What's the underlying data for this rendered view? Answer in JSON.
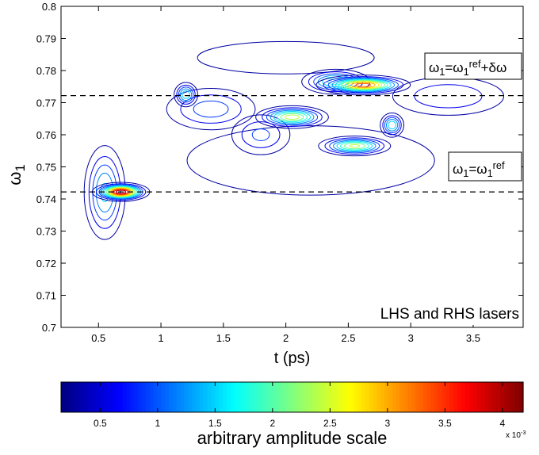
{
  "chart_data": {
    "type": "contour",
    "xlabel": "t (ps)",
    "ylabel": [
      {
        "text": "ω",
        "kind": "base"
      },
      {
        "text": "1",
        "kind": "sub"
      }
    ],
    "xlim": [
      0.2,
      3.9
    ],
    "xticks": [
      0.5,
      1,
      1.5,
      2,
      2.5,
      3,
      3.5
    ],
    "ylim": [
      0.7,
      0.8
    ],
    "yticks": [
      0.7,
      0.71,
      0.72,
      0.73,
      0.74,
      0.75,
      0.76,
      0.77,
      0.78,
      0.79,
      0.8
    ],
    "colormap": "jet",
    "clim": [
      0.16,
      4.18
    ],
    "cticks": [
      0.5,
      1,
      1.5,
      2,
      2.5,
      3,
      3.5,
      4
    ],
    "colorbar_label": "arbitrary amplitude scale",
    "colorbar_exponent": [
      {
        "text": "x 10",
        "kind": "base"
      },
      {
        "text": "-3",
        "kind": "sup"
      }
    ],
    "contour_step": 0.3,
    "hlines": [
      0.7722,
      0.7422
    ],
    "annotations": [
      [
        {
          "text": "ω",
          "kind": "base"
        },
        {
          "text": "1",
          "kind": "sub"
        },
        {
          "text": "=ω",
          "kind": "base"
        },
        {
          "text": "1",
          "kind": "sub"
        },
        {
          "text": "ref",
          "kind": "sup"
        },
        {
          "text": "+δω",
          "kind": "base"
        }
      ],
      [
        {
          "text": "ω",
          "kind": "base"
        },
        {
          "text": "1",
          "kind": "sub"
        },
        {
          "text": "=ω",
          "kind": "base"
        },
        {
          "text": "1",
          "kind": "sub"
        },
        {
          "text": "ref",
          "kind": "sup"
        }
      ]
    ],
    "legend_text": "LHS and RHS lasers",
    "peaks": [
      {
        "t": 2.2,
        "omega": 0.752,
        "amplitude": 0.45,
        "t_width": 1.1,
        "omega_width": 0.012
      },
      {
        "t": 2.0,
        "omega": 0.784,
        "amplitude": 0.5,
        "t_width": 0.7,
        "omega_width": 0.005
      },
      {
        "t": 0.55,
        "omega": 0.742,
        "amplitude": 1.6,
        "t_width": 0.09,
        "omega_width": 0.008
      },
      {
        "t": 0.68,
        "omega": 0.7422,
        "amplitude": 4.2,
        "t_width": 0.1,
        "omega_width": 0.0013
      },
      {
        "t": 1.4,
        "omega": 0.768,
        "amplitude": 1.1,
        "t_width": 0.22,
        "omega_width": 0.004
      },
      {
        "t": 1.2,
        "omega": 0.7725,
        "amplitude": 1.8,
        "t_width": 0.05,
        "omega_width": 0.002
      },
      {
        "t": 1.8,
        "omega": 0.76,
        "amplitude": 1.0,
        "t_width": 0.15,
        "omega_width": 0.004
      },
      {
        "t": 2.05,
        "omega": 0.7655,
        "amplitude": 2.6,
        "t_width": 0.14,
        "omega_width": 0.0017
      },
      {
        "t": 2.4,
        "omega": 0.7765,
        "amplitude": 2.0,
        "t_width": 0.14,
        "omega_width": 0.002
      },
      {
        "t": 2.62,
        "omega": 0.7755,
        "amplitude": 3.5,
        "t_width": 0.17,
        "omega_width": 0.0014
      },
      {
        "t": 2.55,
        "omega": 0.7565,
        "amplitude": 2.5,
        "t_width": 0.14,
        "omega_width": 0.0015
      },
      {
        "t": 2.85,
        "omega": 0.763,
        "amplitude": 1.8,
        "t_width": 0.05,
        "omega_width": 0.002
      },
      {
        "t": 3.3,
        "omega": 0.772,
        "amplitude": 0.9,
        "t_width": 0.3,
        "omega_width": 0.004
      }
    ]
  }
}
